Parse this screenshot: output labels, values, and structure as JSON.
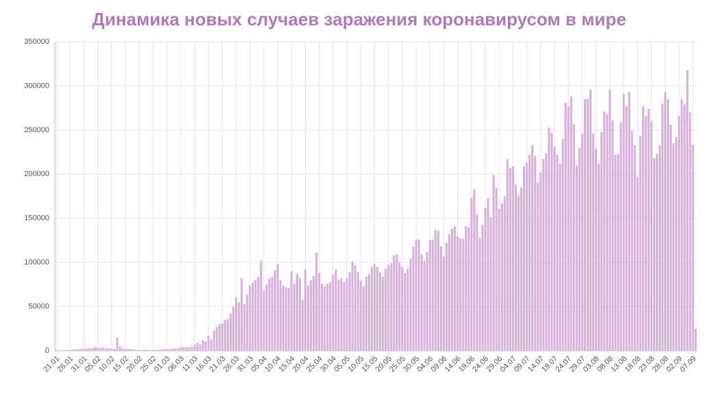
{
  "chart_data": {
    "type": "bar",
    "title": "Динамика новых случаев заражения коронавирусом в мире",
    "color": "#d7b0dc",
    "grid": true,
    "ylim": [
      0,
      350000
    ],
    "yticks": [
      0,
      50000,
      100000,
      150000,
      200000,
      250000,
      300000,
      350000
    ],
    "categories": [
      "21.01",
      null,
      null,
      null,
      null,
      "26.01",
      null,
      null,
      null,
      null,
      "31.01",
      null,
      null,
      null,
      null,
      "05.02",
      null,
      null,
      null,
      null,
      "10.02",
      null,
      null,
      null,
      null,
      "15.02",
      null,
      null,
      null,
      null,
      "20.02",
      null,
      null,
      null,
      null,
      "25.02",
      null,
      null,
      null,
      null,
      "01.03",
      null,
      null,
      null,
      null,
      "06.03",
      null,
      null,
      null,
      null,
      "11.03",
      null,
      null,
      null,
      null,
      "16.03",
      null,
      null,
      null,
      null,
      "21.03",
      null,
      null,
      null,
      null,
      "26.03",
      null,
      null,
      null,
      null,
      "31.03",
      null,
      null,
      null,
      null,
      "05.04",
      null,
      null,
      null,
      null,
      "10.04",
      null,
      null,
      null,
      null,
      "15.04",
      null,
      null,
      null,
      null,
      "20.04",
      null,
      null,
      null,
      null,
      "25.04",
      null,
      null,
      null,
      null,
      "30.04",
      null,
      null,
      null,
      null,
      "05.05",
      null,
      null,
      null,
      null,
      "10.05",
      null,
      null,
      null,
      null,
      "15.05",
      null,
      null,
      null,
      null,
      "20.05",
      null,
      null,
      null,
      null,
      "25.05",
      null,
      null,
      null,
      null,
      "30.05",
      null,
      null,
      null,
      null,
      "04.06",
      null,
      null,
      null,
      null,
      "09.06",
      null,
      null,
      null,
      null,
      "14.06",
      null,
      null,
      null,
      null,
      "19.06",
      null,
      null,
      null,
      null,
      "24.06",
      null,
      null,
      null,
      null,
      "29.06",
      null,
      null,
      null,
      null,
      "04.07",
      null,
      null,
      null,
      null,
      "09.07",
      null,
      null,
      null,
      null,
      "14.07",
      null,
      null,
      null,
      null,
      "19.07",
      null,
      null,
      null,
      null,
      "24.07",
      null,
      null,
      null,
      null,
      "29.07",
      null,
      null,
      null,
      null,
      "03.08",
      null,
      null,
      null,
      null,
      "08.08",
      null,
      null,
      null,
      null,
      "13.08",
      null,
      null,
      null,
      null,
      "18.08",
      null,
      null,
      null,
      null,
      "23.08",
      null,
      null,
      null,
      null,
      "28.08",
      null,
      null,
      null,
      null,
      "02.09",
      null,
      null,
      null,
      null,
      "07.09",
      null
    ],
    "values": [
      100,
      150,
      250,
      500,
      700,
      800,
      1200,
      1700,
      1800,
      2000,
      2100,
      2600,
      2800,
      3200,
      3900,
      3700,
      3200,
      3400,
      2700,
      3000,
      2500,
      2000,
      15000,
      5000,
      2600,
      2100,
      2000,
      2000,
      1800,
      600,
      600,
      1000,
      1200,
      700,
      600,
      800,
      900,
      1100,
      1400,
      1800,
      1900,
      1600,
      2400,
      2300,
      2800,
      3900,
      3900,
      4000,
      4000,
      4500,
      7000,
      9000,
      7000,
      12000,
      10500,
      17000,
      13000,
      23000,
      27000,
      30000,
      31000,
      35000,
      36000,
      42000,
      50000,
      60000,
      55000,
      82000,
      53000,
      64000,
      74000,
      77000,
      80000,
      84000,
      102000,
      68000,
      75000,
      82000,
      84000,
      91000,
      98000,
      80000,
      74000,
      72000,
      71000,
      90000,
      76000,
      87000,
      82000,
      58000,
      92000,
      74000,
      80000,
      85000,
      111000,
      88000,
      76000,
      73000,
      76000,
      78000,
      86000,
      92000,
      80000,
      82000,
      78000,
      82000,
      89000,
      101000,
      97000,
      89000,
      79000,
      73000,
      84000,
      87000,
      95000,
      98000,
      95000,
      89000,
      84000,
      93000,
      97000,
      99000,
      108000,
      109000,
      100000,
      95000,
      88000,
      93000,
      104000,
      118000,
      126000,
      126000,
      109000,
      102000,
      112000,
      125000,
      126000,
      137000,
      136000,
      118000,
      107000,
      122000,
      132000,
      138000,
      141000,
      130000,
      127000,
      127000,
      141000,
      140000,
      173000,
      183000,
      155000,
      128000,
      143000,
      162000,
      173000,
      151000,
      199000,
      185000,
      161000,
      167000,
      175000,
      217000,
      207000,
      209000,
      188000,
      176000,
      185000,
      209000,
      213000,
      222000,
      233000,
      221000,
      191000,
      202000,
      217000,
      224000,
      253000,
      247000,
      231000,
      222000,
      212000,
      240000,
      281000,
      277000,
      288000,
      256000,
      210000,
      230000,
      246000,
      285000,
      285000,
      296000,
      246000,
      229000,
      212000,
      248000,
      271000,
      268000,
      296000,
      261000,
      222000,
      223000,
      259000,
      291000,
      277000,
      293000,
      249000,
      233000,
      197000,
      243000,
      277000,
      266000,
      274000,
      260000,
      218000,
      223000,
      233000,
      280000,
      293000,
      285000,
      256000,
      235000,
      242000,
      266000,
      285000,
      279000,
      318000,
      270000,
      233000,
      25000
    ]
  }
}
